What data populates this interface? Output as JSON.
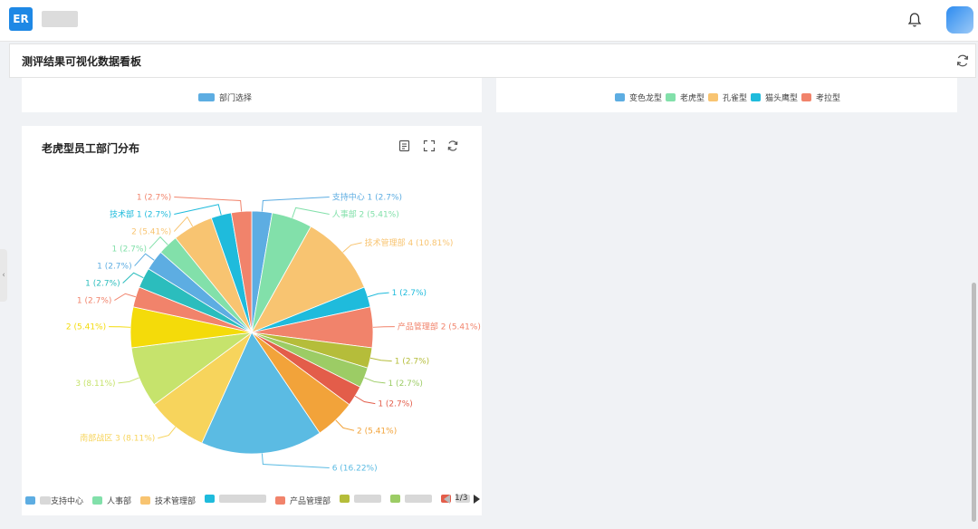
{
  "app": {
    "logo_text": "ER"
  },
  "page": {
    "title": "测评结果可视化数据看板"
  },
  "top_left_card": {
    "legend": [
      {
        "label": "部门选择",
        "color": "#5dade2"
      }
    ]
  },
  "top_right_card": {
    "legend": [
      {
        "label": "变色龙型",
        "color": "#5dade2"
      },
      {
        "label": "老虎型",
        "color": "#82e0aa"
      },
      {
        "label": "孔雀型",
        "color": "#f8c471"
      },
      {
        "label": "猫头鹰型",
        "color": "#1fbbdc"
      },
      {
        "label": "考拉型",
        "color": "#f1836b"
      }
    ]
  },
  "main_card": {
    "title": "老虎型员工部门分布",
    "pagination": "1/3",
    "legend": [
      {
        "label": "支持中心",
        "color": "#5dade2",
        "blur_width": 12
      },
      {
        "label": "人事部",
        "color": "#82e0aa",
        "blur_width": 0
      },
      {
        "label": "技术管理部",
        "color": "#f8c471",
        "blur_width": 0
      },
      {
        "label": "",
        "color": "#1fbbdc",
        "blur_width": 52
      },
      {
        "label": "产品管理部",
        "color": "#f1836b",
        "blur_width": 0
      },
      {
        "label": "",
        "color": "#b5bd3a",
        "blur_width": 30
      },
      {
        "label": "",
        "color": "#9ccc65",
        "blur_width": 30
      },
      {
        "label": "",
        "color": "#e35d4a",
        "blur_width": 16
      }
    ]
  },
  "chart_data": {
    "type": "pie",
    "title": "老虎型员工部门分布",
    "series": [
      {
        "name": "支持中心",
        "value": 1,
        "label": "支持中心 1 (2.7%)",
        "color": "#5dade2"
      },
      {
        "name": "人事部",
        "value": 2,
        "label": "人事部 2 (5.41%)",
        "color": "#82e0aa"
      },
      {
        "name": "技术管理部",
        "value": 4,
        "label": "技术管理部 4 (10.81%)",
        "color": "#f8c471"
      },
      {
        "name": "",
        "value": 1,
        "label": "1 (2.7%)",
        "color": "#1fbbdc"
      },
      {
        "name": "产品管理部",
        "value": 2,
        "label": "产品管理部 2 (5.41%)",
        "color": "#f1836b"
      },
      {
        "name": "",
        "value": 1,
        "label": "1 (2.7%)",
        "color": "#b5bd3a"
      },
      {
        "name": "",
        "value": 1,
        "label": "1 (2.7%)",
        "color": "#9ccc65"
      },
      {
        "name": "",
        "value": 1,
        "label": "1 (2.7%)",
        "color": "#e35d4a"
      },
      {
        "name": "",
        "value": 2,
        "label": "2 (5.41%)",
        "color": "#f2a33a"
      },
      {
        "name": "",
        "value": 6,
        "label": "6 (16.22%)",
        "color": "#5bbbe3"
      },
      {
        "name": "南部战区",
        "value": 3,
        "label": "南部战区 3 (8.11%)",
        "color": "#f7d45c"
      },
      {
        "name": "",
        "value": 3,
        "label": "3 (8.11%)",
        "color": "#c6e36c"
      },
      {
        "name": "",
        "value": 2,
        "label": "2 (5.41%)",
        "color": "#f4db0a"
      },
      {
        "name": "",
        "value": 1,
        "label": "1 (2.7%)",
        "color": "#f1836b"
      },
      {
        "name": "",
        "value": 1,
        "label": "1 (2.7%)",
        "color": "#2bbdbd"
      },
      {
        "name": "",
        "value": 1,
        "label": "1 (2.7%)",
        "color": "#5dade2"
      },
      {
        "name": "",
        "value": 1,
        "label": "1 (2.7%)",
        "color": "#82e0aa"
      },
      {
        "name": "",
        "value": 2,
        "label": "2 (5.41%)",
        "color": "#f8c471"
      },
      {
        "name": "技术部",
        "value": 1,
        "label": "技术部 1 (2.7%)",
        "color": "#1fbbdc"
      },
      {
        "name": "",
        "value": 1,
        "label": "1 (2.7%)",
        "color": "#f1836b"
      }
    ]
  }
}
